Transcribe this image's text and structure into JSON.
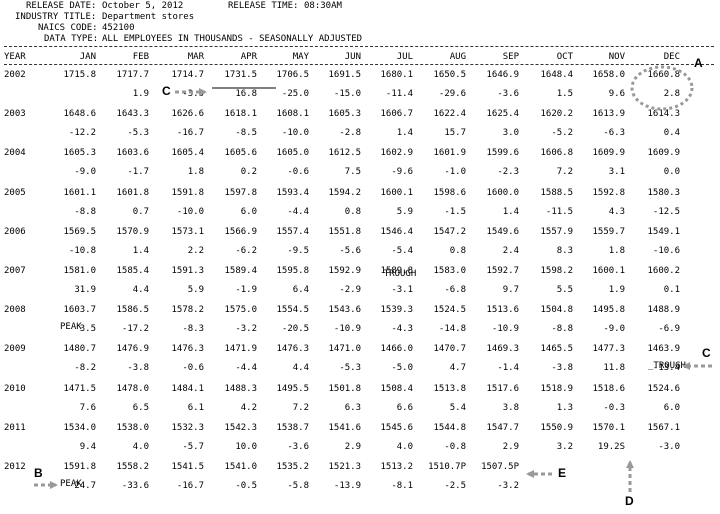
{
  "header": {
    "release_date_label": "RELEASE DATE:",
    "release_date": "October 5, 2012",
    "release_time_label": "RELEASE TIME:",
    "release_time": "08:30AM",
    "industry_label": "INDUSTRY TITLE:",
    "industry": "Department stores",
    "naics_label": "NAICS CODE:",
    "naics": "452100",
    "datatype_label": "DATA TYPE:",
    "datatype": "ALL EMPLOYEES IN THOUSANDS - SEASONALLY ADJUSTED"
  },
  "columns": [
    "YEAR",
    "JAN",
    "FEB",
    "MAR",
    "APR",
    "MAY",
    "JUN",
    "JUL",
    "AUG",
    "SEP",
    "OCT",
    "NOV",
    "DEC"
  ],
  "rows": [
    {
      "year": "2002",
      "values": [
        "1715.8",
        "1717.7",
        "1714.7",
        "1731.5",
        "1706.5",
        "1691.5",
        "1680.1",
        "1650.5",
        "1646.9",
        "1648.4",
        "1658.0",
        "1660.8"
      ],
      "changes": [
        "",
        "1.9",
        "-3.0",
        "16.8",
        "-25.0",
        "-15.0",
        "-11.4",
        "-29.6",
        "-3.6",
        "1.5",
        "9.6",
        "2.8"
      ]
    },
    {
      "year": "2003",
      "values": [
        "1648.6",
        "1643.3",
        "1626.6",
        "1618.1",
        "1608.1",
        "1605.3",
        "1606.7",
        "1622.4",
        "1625.4",
        "1620.2",
        "1613.9",
        "1614.3"
      ],
      "changes": [
        "-12.2",
        "-5.3",
        "-16.7",
        "-8.5",
        "-10.0",
        "-2.8",
        "1.4",
        "15.7",
        "3.0",
        "-5.2",
        "-6.3",
        "0.4"
      ]
    },
    {
      "year": "2004",
      "values": [
        "1605.3",
        "1603.6",
        "1605.4",
        "1605.6",
        "1605.0",
        "1612.5",
        "1602.9",
        "1601.9",
        "1599.6",
        "1606.8",
        "1609.9",
        "1609.9"
      ],
      "changes": [
        "-9.0",
        "-1.7",
        "1.8",
        "0.2",
        "-0.6",
        "7.5",
        "-9.6",
        "-1.0",
        "-2.3",
        "7.2",
        "3.1",
        "0.0"
      ]
    },
    {
      "year": "2005",
      "values": [
        "1601.1",
        "1601.8",
        "1591.8",
        "1597.8",
        "1593.4",
        "1594.2",
        "1600.1",
        "1598.6",
        "1600.0",
        "1588.5",
        "1592.8",
        "1580.3"
      ],
      "changes": [
        "-8.8",
        "0.7",
        "-10.0",
        "6.0",
        "-4.4",
        "0.8",
        "5.9",
        "-1.5",
        "1.4",
        "-11.5",
        "4.3",
        "-12.5"
      ]
    },
    {
      "year": "2006",
      "values": [
        "1569.5",
        "1570.9",
        "1573.1",
        "1566.9",
        "1557.4",
        "1551.8",
        "1546.4",
        "1547.2",
        "1549.6",
        "1557.9",
        "1559.7",
        "1549.1"
      ],
      "changes": [
        "-10.8",
        "1.4",
        "2.2",
        "-6.2",
        "-9.5",
        "-5.6",
        "-5.4",
        "0.8",
        "2.4",
        "8.3",
        "1.8",
        "-10.6"
      ]
    },
    {
      "year": "2007",
      "values": [
        "1581.0",
        "1585.4",
        "1591.3",
        "1589.4",
        "1595.8",
        "1592.9",
        "1589.8",
        "1583.0",
        "1592.7",
        "1598.2",
        "1600.1",
        "1600.2"
      ],
      "changes": [
        "31.9",
        "4.4",
        "5.9",
        "-1.9",
        "6.4",
        "-2.9",
        "-3.1",
        "-6.8",
        "9.7",
        "5.5",
        "1.9",
        "0.1"
      ]
    },
    {
      "year": "2008",
      "values": [
        "1603.7",
        "1586.5",
        "1578.2",
        "1575.0",
        "1554.5",
        "1543.6",
        "1539.3",
        "1524.5",
        "1513.6",
        "1504.8",
        "1495.8",
        "1488.9"
      ],
      "changes": [
        "3.5",
        "-17.2",
        "-8.3",
        "-3.2",
        "-20.5",
        "-10.9",
        "-4.3",
        "-14.8",
        "-10.9",
        "-8.8",
        "-9.0",
        "-6.9"
      ]
    },
    {
      "year": "2009",
      "values": [
        "1480.7",
        "1476.9",
        "1476.3",
        "1471.9",
        "1476.3",
        "1471.0",
        "1466.0",
        "1470.7",
        "1469.3",
        "1465.5",
        "1477.3",
        "1463.9"
      ],
      "changes": [
        "-8.2",
        "-3.8",
        "-0.6",
        "-4.4",
        "4.4",
        "-5.3",
        "-5.0",
        "4.7",
        "-1.4",
        "-3.8",
        "11.8",
        "-13.4"
      ]
    },
    {
      "year": "2010",
      "values": [
        "1471.5",
        "1478.0",
        "1484.1",
        "1488.3",
        "1495.5",
        "1501.8",
        "1508.4",
        "1513.8",
        "1517.6",
        "1518.9",
        "1518.6",
        "1524.6"
      ],
      "changes": [
        "7.6",
        "6.5",
        "6.1",
        "4.2",
        "7.2",
        "6.3",
        "6.6",
        "5.4",
        "3.8",
        "1.3",
        "-0.3",
        "6.0"
      ]
    },
    {
      "year": "2011",
      "values": [
        "1534.0",
        "1538.0",
        "1532.3",
        "1542.3",
        "1538.7",
        "1541.6",
        "1545.6",
        "1544.8",
        "1547.7",
        "1550.9",
        "1570.1",
        "1567.1"
      ],
      "changes": [
        "9.4",
        "4.0",
        "-5.7",
        "10.0",
        "-3.6",
        "2.9",
        "4.0",
        "-0.8",
        "2.9",
        "3.2",
        "19.2",
        "-3.0"
      ]
    },
    {
      "year": "2012",
      "values": [
        "1591.8",
        "1558.2",
        "1541.5",
        "1541.0",
        "1535.2",
        "1521.3",
        "1513.2",
        "1510.7P",
        "1507.5P",
        "",
        "",
        ""
      ],
      "changes": [
        "24.7",
        "-33.6",
        "-16.7",
        "-0.5",
        "-5.8",
        "-13.9",
        "-8.1",
        "-2.5",
        "-3.2",
        "",
        "",
        ""
      ]
    }
  ],
  "notes": {
    "trough_2006": "TROUGH",
    "peak_2008": "PEAK",
    "trough_2009": "_TROUGH",
    "peak_2012": "PEAK",
    "nov_2011_change": "19.2S"
  },
  "annotations": {
    "A": "A",
    "B": "B",
    "C_top": "C",
    "C_right": "C",
    "D": "D",
    "E": "E"
  },
  "colors": {
    "arrow": "#999999",
    "text": "#000000"
  }
}
